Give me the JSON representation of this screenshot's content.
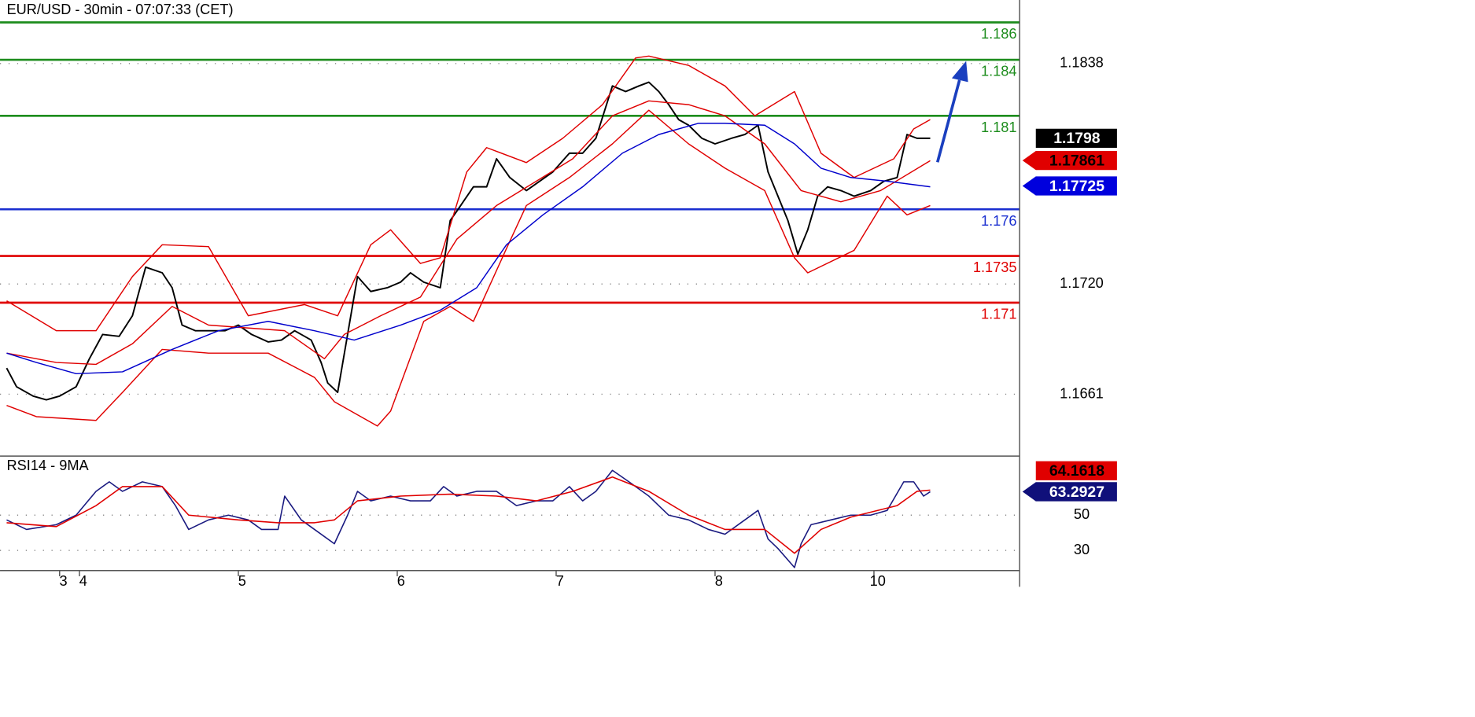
{
  "chart_data": [
    {
      "type": "line",
      "title": "EUR/USD - 30min - 07:07:33 (CET)",
      "xlim": [
        -2,
        306
      ],
      "ylim": [
        1.1632,
        1.1872
      ],
      "yticks": [
        1.1838,
        {
          "value": 1.172,
          "label": "1.1720"
        },
        1.1661
      ],
      "grid": true,
      "series": [
        {
          "color": "#000000",
          "width": 1.6,
          "x": [
            0,
            3,
            8,
            12,
            16,
            21,
            25,
            29,
            34,
            38,
            42,
            47,
            50,
            53,
            57,
            61,
            66,
            70,
            74,
            79,
            83,
            87,
            92,
            95,
            97,
            100,
            103,
            106,
            110,
            115,
            119,
            122,
            126,
            131,
            134,
            136,
            141,
            145,
            148,
            152,
            157,
            161,
            165,
            170,
            174,
            178,
            183,
            187,
            191,
            194,
            197,
            200,
            203,
            206,
            210,
            214,
            219,
            223,
            227,
            230,
            233,
            236,
            239,
            242,
            245,
            248,
            252,
            256,
            261,
            265,
            269,
            272,
            275,
            279
          ],
          "values": [
            1.1675,
            1.1665,
            1.166,
            1.1658,
            1.166,
            1.1665,
            1.168,
            1.1693,
            1.1692,
            1.1703,
            1.1729,
            1.1726,
            1.1718,
            1.1698,
            1.1695,
            1.1695,
            1.1695,
            1.1698,
            1.1693,
            1.1689,
            1.169,
            1.1695,
            1.169,
            1.1678,
            1.1667,
            1.1662,
            1.1693,
            1.1724,
            1.1716,
            1.1718,
            1.1721,
            1.1726,
            1.1721,
            1.1718,
            1.1754,
            1.1759,
            1.1772,
            1.1772,
            1.1787,
            1.1777,
            1.177,
            1.1775,
            1.178,
            1.179,
            1.179,
            1.1798,
            1.1826,
            1.1823,
            1.1826,
            1.1828,
            1.1823,
            1.1816,
            1.1808,
            1.1805,
            1.1798,
            1.1795,
            1.1798,
            1.18,
            1.1805,
            1.178,
            1.1767,
            1.1754,
            1.1736,
            1.1749,
            1.1767,
            1.1772,
            1.177,
            1.1767,
            1.177,
            1.1775,
            1.1777,
            1.18,
            1.1798,
            1.1798
          ]
        },
        {
          "color": "#e00000",
          "width": 1.2,
          "x": [
            0,
            15,
            27,
            38,
            47,
            61,
            73,
            90,
            100,
            110,
            116,
            125,
            131,
            139,
            145,
            157,
            168,
            180,
            190,
            194,
            206,
            217,
            226,
            238,
            246,
            256,
            268,
            274,
            279
          ],
          "values": [
            1.1711,
            1.1695,
            1.1695,
            1.1724,
            1.1741,
            1.174,
            1.1703,
            1.1709,
            1.1703,
            1.1741,
            1.1749,
            1.1731,
            1.1734,
            1.178,
            1.1793,
            1.1785,
            1.1798,
            1.1816,
            1.1841,
            1.1842,
            1.1837,
            1.1826,
            1.181,
            1.1823,
            1.179,
            1.1777,
            1.1787,
            1.1803,
            1.1808
          ]
        },
        {
          "color": "#e00000",
          "width": 1.2,
          "x": [
            0,
            9,
            27,
            35,
            47,
            61,
            79,
            93,
            99,
            112,
            116,
            126,
            134,
            141,
            151,
            157,
            170,
            183,
            194,
            206,
            217,
            229,
            238,
            242,
            256,
            266,
            272,
            279
          ],
          "values": [
            1.1655,
            1.1649,
            1.1647,
            1.1662,
            1.1685,
            1.1683,
            1.1683,
            1.167,
            1.1657,
            1.1644,
            1.1652,
            1.17,
            1.1708,
            1.17,
            1.1739,
            1.1762,
            1.1777,
            1.1795,
            1.1813,
            1.1795,
            1.1782,
            1.177,
            1.1734,
            1.1726,
            1.1738,
            1.1767,
            1.1757,
            1.1762
          ]
        },
        {
          "color": "#e00000",
          "width": 1.2,
          "x": [
            0,
            15,
            27,
            38,
            50,
            61,
            84,
            96,
            102,
            113,
            125,
            136,
            148,
            160,
            171,
            183,
            194,
            206,
            217,
            229,
            240,
            252,
            264,
            279
          ],
          "values": [
            1.1683,
            1.1678,
            1.1677,
            1.1688,
            1.1708,
            1.1698,
            1.1695,
            1.168,
            1.1693,
            1.1703,
            1.1713,
            1.1744,
            1.1762,
            1.1775,
            1.1787,
            1.181,
            1.1818,
            1.1816,
            1.181,
            1.1795,
            1.177,
            1.1764,
            1.177,
            1.1786
          ]
        },
        {
          "color": "#0000cc",
          "width": 1.2,
          "x": [
            0,
            9,
            21,
            35,
            50,
            64,
            79,
            93,
            105,
            119,
            131,
            142,
            151,
            162,
            174,
            186,
            197,
            209,
            217,
            229,
            238,
            246,
            255,
            266,
            279
          ],
          "values": [
            1.1683,
            1.1678,
            1.1672,
            1.1673,
            1.1685,
            1.1695,
            1.17,
            1.1695,
            1.169,
            1.1698,
            1.1706,
            1.1718,
            1.1741,
            1.1757,
            1.1772,
            1.179,
            1.18,
            1.1806,
            1.1806,
            1.1805,
            1.1795,
            1.1782,
            1.1777,
            1.1775,
            1.1772
          ]
        }
      ],
      "levels": [
        {
          "value": 1.186,
          "color": "#1c8c1c"
        },
        {
          "value": 1.184,
          "color": "#1c8c1c"
        },
        {
          "value": 1.181,
          "color": "#1c8c1c"
        },
        {
          "value": 1.176,
          "color": "#1a2fd0"
        },
        {
          "value": 1.1735,
          "color": "#e00000"
        },
        {
          "value": 1.171,
          "color": "#e00000"
        }
      ],
      "price_labels": [
        {
          "value": 1.1798,
          "color": "#000000",
          "text_color": "#ffffff",
          "pointer": false
        },
        {
          "value": 1.17861,
          "color": "#e00000",
          "text_color": "#000000",
          "pointer": true
        },
        {
          "value": 1.17725,
          "color": "#0000dd",
          "text_color": "#ffffff",
          "pointer": true
        }
      ]
    },
    {
      "type": "line",
      "title": "RSI14 - 9MA",
      "xlim": [
        -2,
        306
      ],
      "ylim": [
        18.6,
        83.5
      ],
      "xticks": [
        {
          "value": 16,
          "label": "3"
        },
        {
          "value": 22,
          "label": "4"
        },
        {
          "value": 70,
          "label": "5"
        },
        {
          "value": 118,
          "label": "6"
        },
        {
          "value": 166,
          "label": "7"
        },
        {
          "value": 214,
          "label": "8"
        },
        {
          "value": 262,
          "label": "10"
        }
      ],
      "yticks": [
        50,
        30
      ],
      "grid": true,
      "series": [
        {
          "color": "#1a1a80",
          "width": 1.3,
          "x": [
            0,
            6,
            15,
            21,
            27,
            31,
            35,
            41,
            47,
            51,
            55,
            61,
            67,
            73,
            77,
            82,
            84,
            89,
            93,
            99,
            103,
            106,
            110,
            116,
            122,
            128,
            132,
            136,
            142,
            148,
            154,
            160,
            165,
            170,
            174,
            178,
            183,
            188,
            194,
            200,
            206,
            212,
            217,
            223,
            227,
            230,
            233,
            238,
            240,
            243,
            249,
            255,
            261,
            266,
            271,
            274,
            277,
            279
          ],
          "values": [
            47.3,
            41.9,
            44.6,
            50,
            63.5,
            68.9,
            63.5,
            68.9,
            66.2,
            55.4,
            41.9,
            47.3,
            50,
            47.3,
            41.9,
            41.9,
            60.8,
            47.3,
            41.9,
            33.8,
            50,
            63.5,
            58.1,
            60.8,
            58.1,
            58.1,
            66.2,
            60.8,
            63.5,
            63.5,
            55.4,
            58.1,
            58.1,
            66.2,
            58.1,
            63.5,
            75.4,
            68.9,
            60.8,
            50,
            47.3,
            41.9,
            39.2,
            47.3,
            52.7,
            36.5,
            31.1,
            20.3,
            33.8,
            44.6,
            47.3,
            50,
            50,
            52.7,
            68.9,
            68.9,
            60.8,
            63.3
          ]
        },
        {
          "color": "#e00000",
          "width": 1.3,
          "x": [
            0,
            15,
            27,
            35,
            47,
            55,
            70,
            82,
            93,
            99,
            106,
            119,
            134,
            148,
            160,
            171,
            183,
            194,
            206,
            217,
            229,
            238,
            246,
            255,
            269,
            275,
            279
          ],
          "values": [
            45.7,
            43.5,
            55.4,
            66.2,
            66.2,
            50,
            47.3,
            45.7,
            45.7,
            47.3,
            58.1,
            60.8,
            61.9,
            60.8,
            58.1,
            63.5,
            71.6,
            63.5,
            50,
            41.9,
            41.9,
            28.4,
            41.9,
            48.9,
            55.4,
            63.5,
            64.2
          ]
        }
      ],
      "price_labels": [
        {
          "value": 63.2927,
          "color": "#10107a",
          "text_color": "#ffffff",
          "pointer": true
        },
        {
          "value": 64.1618,
          "color": "#e00000",
          "text_color": "#000000",
          "pointer": false
        }
      ]
    }
  ]
}
